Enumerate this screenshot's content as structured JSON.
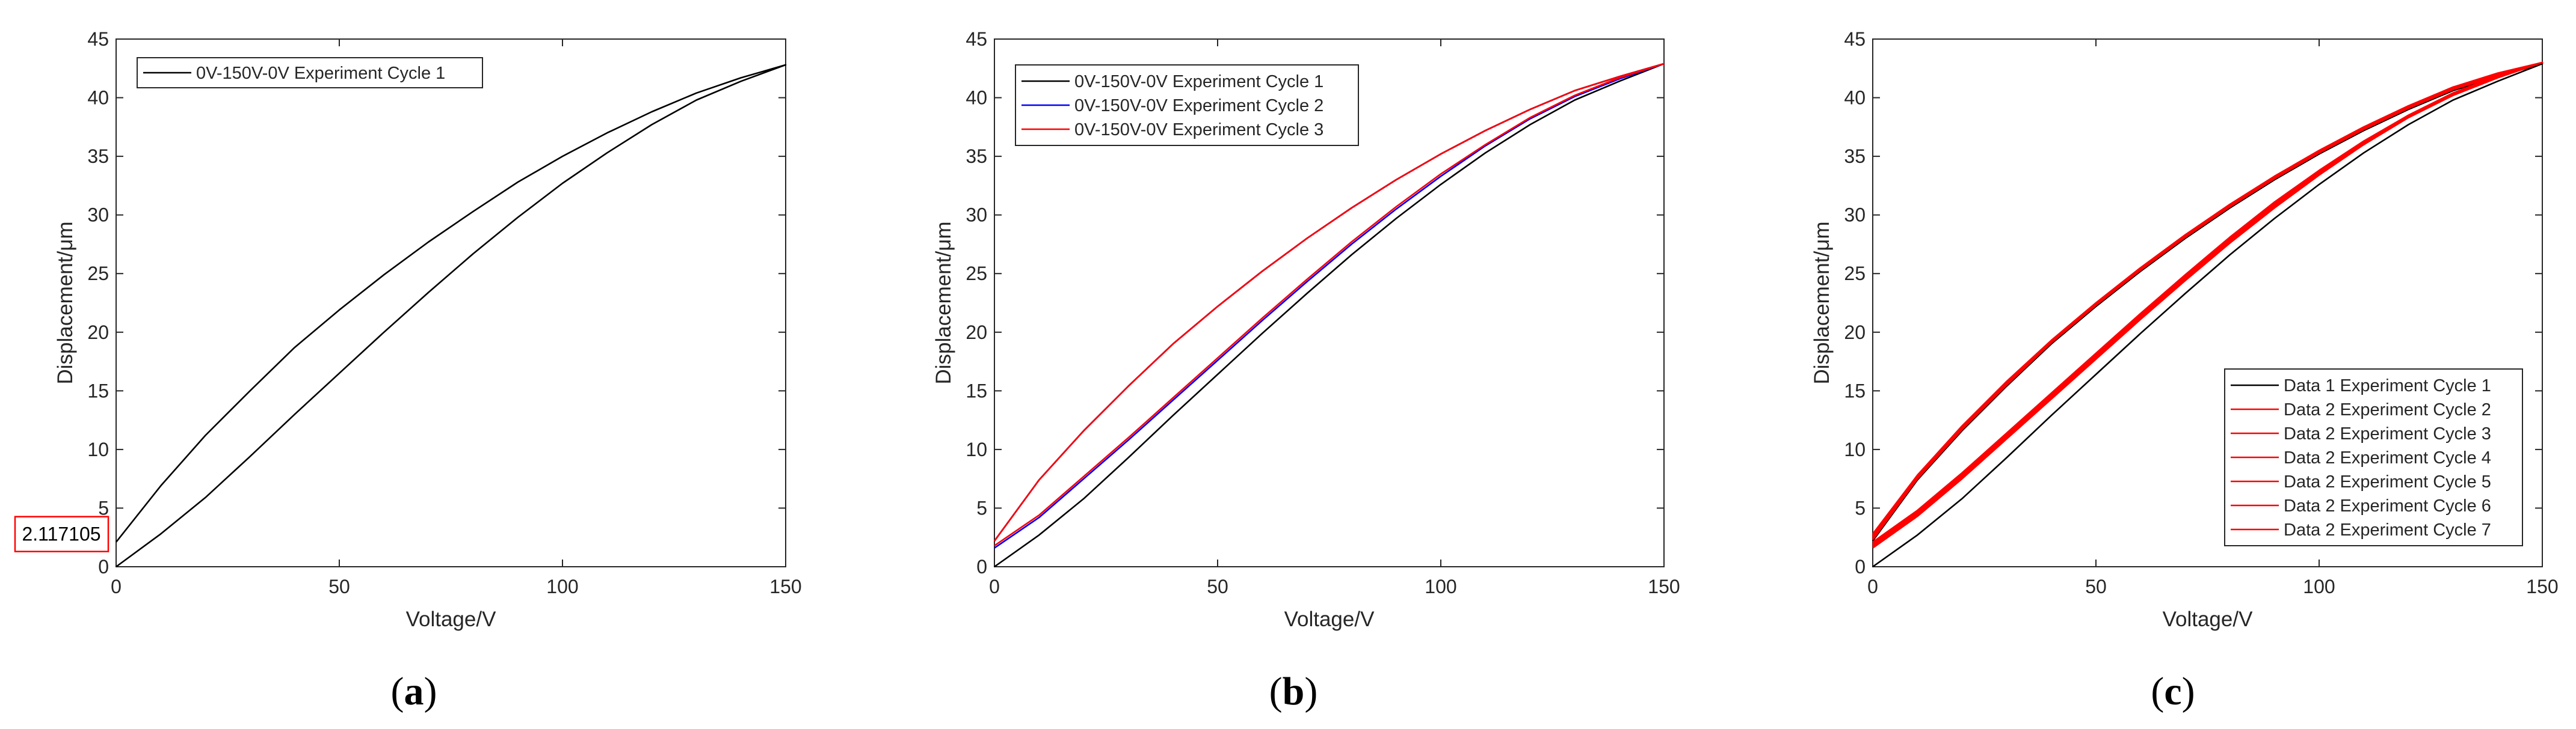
{
  "figure": {
    "panel_labels": [
      {
        "open": "(",
        "letter": "a",
        "close": ")"
      },
      {
        "open": "(",
        "letter": "b",
        "close": ")"
      },
      {
        "open": "(",
        "letter": "c",
        "close": ")"
      }
    ]
  },
  "colors": {
    "axis": "#262626",
    "black_series": "#000000",
    "blue_series": "#0000ff",
    "red_series": "#ff0000",
    "callout_border": "#ff0000"
  },
  "chart_data": [
    {
      "type": "line",
      "panel": "a",
      "title": "",
      "xlabel": "Voltage/V",
      "ylabel": "Displacement/μm",
      "xlim": [
        0,
        150
      ],
      "ylim": [
        0,
        45
      ],
      "xticks": [
        0,
        50,
        100,
        150
      ],
      "yticks": [
        0,
        5,
        10,
        15,
        20,
        25,
        30,
        35,
        40,
        45
      ],
      "grid": false,
      "legend_position": "top-left",
      "annotation": {
        "text": "2.117105",
        "x": 0,
        "y": 2.117105
      },
      "series": [
        {
          "name": "0V-150V-0V Experiment Cycle 1",
          "color": "#000000",
          "loading": {
            "x": [
              0,
              10,
              20,
              30,
              40,
              50,
              60,
              70,
              80,
              90,
              100,
              110,
              120,
              130,
              140,
              150
            ],
            "y": [
              0,
              2.8,
              5.9,
              9.4,
              13.0,
              16.5,
              20.0,
              23.4,
              26.7,
              29.8,
              32.7,
              35.3,
              37.7,
              39.8,
              41.4,
              42.8
            ]
          },
          "unloading": {
            "x": [
              150,
              140,
              130,
              120,
              110,
              100,
              90,
              80,
              70,
              60,
              50,
              40,
              30,
              20,
              10,
              0
            ],
            "y": [
              42.8,
              41.7,
              40.4,
              38.8,
              37.0,
              35.0,
              32.8,
              30.3,
              27.7,
              24.9,
              21.9,
              18.7,
              15.0,
              11.2,
              6.9,
              2.1
            ]
          }
        }
      ]
    },
    {
      "type": "line",
      "panel": "b",
      "title": "",
      "xlabel": "Voltage/V",
      "ylabel": "Displacement/μm",
      "xlim": [
        0,
        150
      ],
      "ylim": [
        0,
        45
      ],
      "xticks": [
        0,
        50,
        100,
        150
      ],
      "yticks": [
        0,
        5,
        10,
        15,
        20,
        25,
        30,
        35,
        40,
        45
      ],
      "grid": false,
      "legend_position": "top-left",
      "series": [
        {
          "name": "0V-150V-0V Experiment Cycle 1",
          "color": "#000000",
          "loading": {
            "x": [
              0,
              10,
              20,
              30,
              40,
              50,
              60,
              70,
              80,
              90,
              100,
              110,
              120,
              130,
              140,
              150
            ],
            "y": [
              0,
              2.7,
              5.8,
              9.3,
              12.9,
              16.4,
              19.9,
              23.3,
              26.6,
              29.7,
              32.6,
              35.3,
              37.7,
              39.8,
              41.4,
              42.9
            ]
          },
          "unloading": {
            "x": [
              150,
              140,
              130,
              120,
              110,
              100,
              90,
              80,
              70,
              60,
              50,
              40,
              30,
              20,
              10,
              0
            ],
            "y": [
              42.9,
              41.8,
              40.6,
              39.0,
              37.2,
              35.2,
              33.0,
              30.6,
              28.0,
              25.2,
              22.2,
              19.0,
              15.4,
              11.6,
              7.4,
              2.2
            ]
          }
        },
        {
          "name": "0V-150V-0V Experiment Cycle 2",
          "color": "#0000ff",
          "loading": {
            "x": [
              0,
              10,
              20,
              30,
              40,
              50,
              60,
              70,
              80,
              90,
              100,
              110,
              120,
              130,
              140,
              150
            ],
            "y": [
              1.6,
              4.2,
              7.5,
              10.8,
              14.2,
              17.6,
              21.0,
              24.3,
              27.5,
              30.5,
              33.3,
              35.9,
              38.2,
              40.1,
              41.6,
              42.9
            ]
          },
          "unloading": {
            "x": [
              150,
              140,
              130,
              120,
              110,
              100,
              90,
              80,
              70,
              60,
              50,
              40,
              30,
              20,
              10,
              0
            ],
            "y": [
              42.9,
              41.8,
              40.6,
              39.0,
              37.2,
              35.2,
              33.0,
              30.6,
              28.0,
              25.2,
              22.2,
              19.0,
              15.4,
              11.6,
              7.4,
              2.2
            ]
          }
        },
        {
          "name": "0V-150V-0V Experiment Cycle 3",
          "color": "#ff0000",
          "loading": {
            "x": [
              0,
              10,
              20,
              30,
              40,
              50,
              60,
              70,
              80,
              90,
              100,
              110,
              120,
              130,
              140,
              150
            ],
            "y": [
              1.8,
              4.4,
              7.7,
              11.0,
              14.4,
              17.8,
              21.2,
              24.5,
              27.7,
              30.7,
              33.5,
              36.0,
              38.3,
              40.2,
              41.7,
              42.9
            ]
          },
          "unloading": {
            "x": [
              150,
              140,
              130,
              120,
              110,
              100,
              90,
              80,
              70,
              60,
              50,
              40,
              30,
              20,
              10,
              0
            ],
            "y": [
              42.9,
              41.8,
              40.6,
              39.0,
              37.2,
              35.2,
              33.0,
              30.6,
              28.0,
              25.2,
              22.2,
              19.0,
              15.4,
              11.6,
              7.4,
              2.2
            ]
          }
        }
      ]
    },
    {
      "type": "line",
      "panel": "c",
      "title": "",
      "xlabel": "Voltage/V",
      "ylabel": "Displacement/μm",
      "xlim": [
        0,
        150
      ],
      "ylim": [
        0,
        45
      ],
      "xticks": [
        0,
        50,
        100,
        150
      ],
      "yticks": [
        0,
        5,
        10,
        15,
        20,
        25,
        30,
        35,
        40,
        45
      ],
      "grid": false,
      "legend_position": "bottom-right",
      "series": [
        {
          "name": "Data 1 Experiment Cycle 1",
          "color": "#000000",
          "loading": {
            "x": [
              0,
              10,
              20,
              30,
              40,
              50,
              60,
              70,
              80,
              90,
              100,
              110,
              120,
              130,
              140,
              150
            ],
            "y": [
              0,
              2.7,
              5.8,
              9.3,
              12.9,
              16.4,
              19.9,
              23.3,
              26.6,
              29.7,
              32.6,
              35.3,
              37.7,
              39.8,
              41.4,
              42.9
            ]
          },
          "unloading": {
            "x": [
              150,
              140,
              130,
              120,
              110,
              100,
              90,
              80,
              70,
              60,
              50,
              40,
              30,
              20,
              10,
              0
            ],
            "y": [
              42.9,
              41.8,
              40.6,
              39.0,
              37.2,
              35.2,
              33.0,
              30.6,
              28.0,
              25.2,
              22.2,
              19.0,
              15.4,
              11.6,
              7.4,
              2.2
            ]
          }
        },
        {
          "name": "Data 2 Experiment Cycle 2",
          "color": "#ff0000",
          "loading": {
            "x": [
              0,
              10,
              20,
              30,
              40,
              50,
              60,
              70,
              80,
              90,
              100,
              110,
              120,
              130,
              140,
              150
            ],
            "y": [
              1.6,
              4.3,
              7.5,
              10.9,
              14.3,
              17.7,
              21.1,
              24.4,
              27.6,
              30.6,
              33.4,
              36.0,
              38.3,
              40.2,
              41.7,
              43.0
            ]
          },
          "unloading": {
            "x": [
              150,
              140,
              130,
              120,
              110,
              100,
              90,
              80,
              70,
              60,
              50,
              40,
              30,
              20,
              10,
              0
            ],
            "y": [
              43.0,
              41.9,
              40.7,
              39.1,
              37.3,
              35.3,
              33.1,
              30.7,
              28.1,
              25.3,
              22.3,
              19.1,
              15.5,
              11.7,
              7.5,
              2.3
            ]
          }
        },
        {
          "name": "Data 2 Experiment Cycle 3",
          "color": "#ff0000",
          "loading": {
            "x": [
              0,
              10,
              20,
              30,
              40,
              50,
              60,
              70,
              80,
              90,
              100,
              110,
              120,
              130,
              140,
              150
            ],
            "y": [
              1.7,
              4.4,
              7.6,
              11.0,
              14.4,
              17.8,
              21.2,
              24.5,
              27.7,
              30.7,
              33.5,
              36.0,
              38.3,
              40.2,
              41.7,
              43.0
            ]
          },
          "unloading": {
            "x": [
              150,
              140,
              130,
              120,
              110,
              100,
              90,
              80,
              70,
              60,
              50,
              40,
              30,
              20,
              10,
              0
            ],
            "y": [
              43.0,
              41.9,
              40.7,
              39.1,
              37.3,
              35.3,
              33.1,
              30.7,
              28.1,
              25.3,
              22.3,
              19.1,
              15.5,
              11.7,
              7.5,
              2.4
            ]
          }
        },
        {
          "name": "Data 2 Experiment Cycle 4",
          "color": "#ff0000",
          "loading": {
            "x": [
              0,
              10,
              20,
              30,
              40,
              50,
              60,
              70,
              80,
              90,
              100,
              110,
              120,
              130,
              140,
              150
            ],
            "y": [
              1.8,
              4.5,
              7.7,
              11.1,
              14.5,
              17.9,
              21.3,
              24.6,
              27.8,
              30.8,
              33.6,
              36.1,
              38.4,
              40.3,
              41.8,
              43.0
            ]
          },
          "unloading": {
            "x": [
              150,
              140,
              130,
              120,
              110,
              100,
              90,
              80,
              70,
              60,
              50,
              40,
              30,
              20,
              10,
              0
            ],
            "y": [
              43.0,
              42.0,
              40.8,
              39.2,
              37.4,
              35.4,
              33.2,
              30.8,
              28.2,
              25.4,
              22.4,
              19.2,
              15.6,
              11.8,
              7.6,
              2.5
            ]
          }
        },
        {
          "name": "Data 2 Experiment Cycle 5",
          "color": "#ff0000",
          "loading": {
            "x": [
              0,
              10,
              20,
              30,
              40,
              50,
              60,
              70,
              80,
              90,
              100,
              110,
              120,
              130,
              140,
              150
            ],
            "y": [
              1.9,
              4.6,
              7.8,
              11.2,
              14.6,
              18.0,
              21.4,
              24.7,
              27.9,
              30.9,
              33.6,
              36.1,
              38.4,
              40.3,
              41.8,
              43.0
            ]
          },
          "unloading": {
            "x": [
              150,
              140,
              130,
              120,
              110,
              100,
              90,
              80,
              70,
              60,
              50,
              40,
              30,
              20,
              10,
              0
            ],
            "y": [
              43.0,
              42.0,
              40.8,
              39.2,
              37.4,
              35.4,
              33.2,
              30.8,
              28.2,
              25.4,
              22.4,
              19.2,
              15.7,
              11.9,
              7.7,
              2.6
            ]
          }
        },
        {
          "name": "Data 2 Experiment Cycle 6",
          "color": "#ff0000",
          "loading": {
            "x": [
              0,
              10,
              20,
              30,
              40,
              50,
              60,
              70,
              80,
              90,
              100,
              110,
              120,
              130,
              140,
              150
            ],
            "y": [
              2.0,
              4.7,
              7.9,
              11.3,
              14.7,
              18.1,
              21.5,
              24.8,
              28.0,
              31.0,
              33.7,
              36.2,
              38.5,
              40.4,
              41.8,
              43.0
            ]
          },
          "unloading": {
            "x": [
              150,
              140,
              130,
              120,
              110,
              100,
              90,
              80,
              70,
              60,
              50,
              40,
              30,
              20,
              10,
              0
            ],
            "y": [
              43.0,
              42.0,
              40.9,
              39.3,
              37.5,
              35.5,
              33.3,
              30.9,
              28.3,
              25.5,
              22.5,
              19.3,
              15.8,
              12.0,
              7.8,
              2.7
            ]
          }
        },
        {
          "name": "Data 2 Experiment Cycle 7",
          "color": "#ff0000",
          "loading": {
            "x": [
              0,
              10,
              20,
              30,
              40,
              50,
              60,
              70,
              80,
              90,
              100,
              110,
              120,
              130,
              140,
              150
            ],
            "y": [
              2.1,
              4.8,
              8.0,
              11.4,
              14.8,
              18.2,
              21.6,
              24.9,
              28.1,
              31.1,
              33.8,
              36.3,
              38.5,
              40.4,
              41.9,
              43.0
            ]
          },
          "unloading": {
            "x": [
              150,
              140,
              130,
              120,
              110,
              100,
              90,
              80,
              70,
              60,
              50,
              40,
              30,
              20,
              10,
              0
            ],
            "y": [
              43.0,
              42.1,
              40.9,
              39.3,
              37.5,
              35.5,
              33.3,
              30.9,
              28.3,
              25.5,
              22.5,
              19.3,
              15.8,
              12.0,
              7.8,
              2.8
            ]
          }
        }
      ]
    }
  ]
}
